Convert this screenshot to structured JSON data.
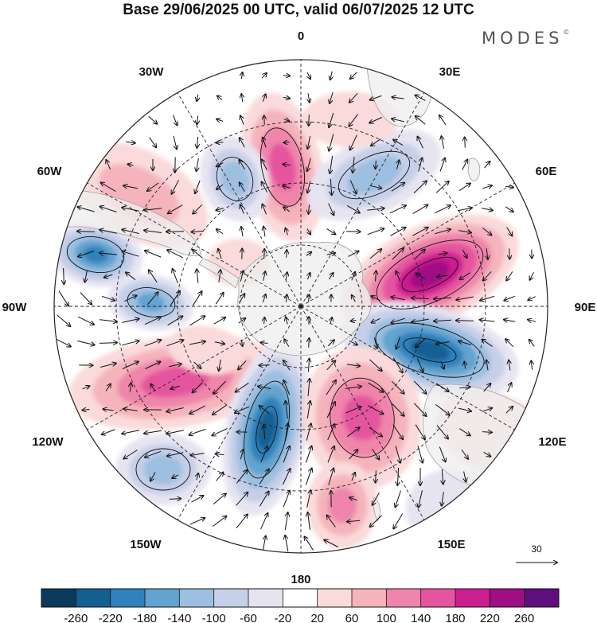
{
  "title": "Base 29/06/2025 00 UTC, valid 06/07/2025 12 UTC",
  "brand": "MODES",
  "brand_mark": "©",
  "map": {
    "projection": "south-polar-stereographic",
    "longitude_labels": {
      "lon_0": "0",
      "lon_30e": "30E",
      "lon_60e": "60E",
      "lon_90e": "90E",
      "lon_120e": "120E",
      "lon_150e": "150E",
      "lon_180": "180",
      "lon_150w": "150W",
      "lon_120w": "120W",
      "lon_90w": "90W",
      "lon_60w": "60W",
      "lon_30w": "30W"
    },
    "reference_vector": {
      "label": "30"
    },
    "colors": {
      "land": "#eeeeee",
      "coast": "#a0a0a0",
      "n260": "#0c3a5c",
      "n220": "#135f92",
      "n180": "#2f81bb",
      "n140": "#62a3cf",
      "n100": "#9dbfe0",
      "n60": "#c6cfe8",
      "n20": "#e6e4f1",
      "zero": "#ffffff",
      "p20": "#fadada",
      "p60": "#f5b4bc",
      "p100": "#ef85aa",
      "p140": "#e5559f",
      "p180": "#cc1f8f",
      "p220": "#9e0f84",
      "p260": "#5f0e7e"
    }
  },
  "colorbar": {
    "ticks": [
      "-260",
      "-220",
      "-180",
      "-140",
      "-100",
      "-60",
      "-20",
      "20",
      "60",
      "100",
      "140",
      "180",
      "220",
      "260"
    ],
    "colors": [
      "#0c3a5c",
      "#135f92",
      "#2f81bb",
      "#62a3cf",
      "#9dbfe0",
      "#c6cfe8",
      "#e6e4f1",
      "#ffffff",
      "#fadada",
      "#f5b4bc",
      "#ef85aa",
      "#e5559f",
      "#cc1f8f",
      "#9e0f84",
      "#5f0e7e"
    ]
  }
}
